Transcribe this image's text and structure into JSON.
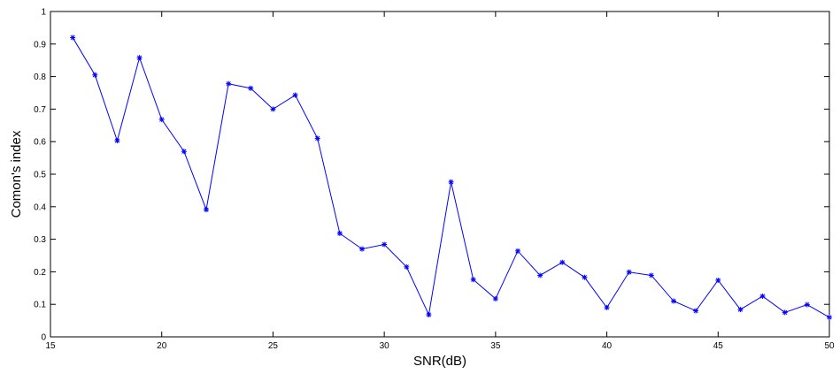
{
  "chart_data": {
    "type": "line",
    "title": "",
    "xlabel": "SNR(dB)",
    "ylabel": "Comon's index",
    "xlim": [
      15,
      50
    ],
    "ylim": [
      0,
      1
    ],
    "xticks": [
      15,
      20,
      25,
      30,
      35,
      40,
      45,
      50
    ],
    "yticks": [
      0,
      0.1,
      0.2,
      0.3,
      0.4,
      0.5,
      0.6,
      0.7,
      0.8,
      0.9,
      1
    ],
    "grid": false,
    "legend": "none",
    "marker": "asterisk",
    "color": "#0000ff",
    "series": [
      {
        "x": [
          16,
          17,
          18,
          19,
          20,
          21,
          22,
          23,
          24,
          25,
          26,
          27,
          28,
          29,
          30,
          31,
          32,
          33,
          34,
          35,
          36,
          37,
          38,
          39,
          40,
          41,
          42,
          43,
          44,
          45,
          46,
          47,
          48,
          49,
          50
        ],
        "values": [
          0.92,
          0.805,
          0.603,
          0.858,
          0.668,
          0.57,
          0.391,
          0.778,
          0.764,
          0.7,
          0.743,
          0.61,
          0.318,
          0.27,
          0.284,
          0.215,
          0.068,
          0.476,
          0.176,
          0.117,
          0.264,
          0.189,
          0.229,
          0.183,
          0.09,
          0.199,
          0.189,
          0.11,
          0.08,
          0.174,
          0.084,
          0.125,
          0.075,
          0.099,
          0.06
        ]
      }
    ]
  }
}
